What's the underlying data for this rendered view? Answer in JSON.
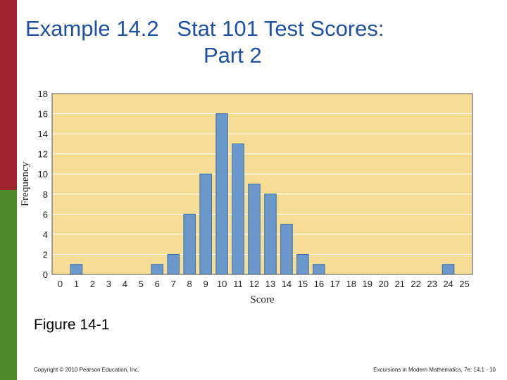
{
  "slide": {
    "title_line1": "Example 14.2   Stat 101 Test Scores:",
    "title_line2": "Part 2",
    "caption": "Figure 14-1",
    "footer_left": "Copyright © 2010 Pearson Education, Inc.",
    "footer_right": "Excursions in Modern Mathematics, 7e: 14.1 - 10"
  },
  "colors": {
    "title": "#1f4fa6",
    "plot_background": "#f5dd95",
    "bar_fill": "#6b98cb",
    "bar_edge": "#3c6ea6",
    "side_red": "#a0232f",
    "side_green": "#4f8a2a"
  },
  "chart_data": {
    "type": "bar",
    "title": "",
    "xlabel": "Score",
    "ylabel": "Frequency",
    "categories": [
      "0",
      "1",
      "2",
      "3",
      "4",
      "5",
      "6",
      "7",
      "8",
      "9",
      "10",
      "11",
      "12",
      "13",
      "14",
      "15",
      "16",
      "17",
      "18",
      "19",
      "20",
      "21",
      "22",
      "23",
      "24",
      "25"
    ],
    "values": [
      0,
      1,
      0,
      0,
      0,
      0,
      1,
      2,
      6,
      10,
      16,
      13,
      9,
      8,
      5,
      2,
      1,
      0,
      0,
      0,
      0,
      0,
      0,
      0,
      1,
      0
    ],
    "ylim": [
      0,
      18
    ],
    "yticks": [
      0,
      2,
      4,
      6,
      8,
      10,
      12,
      14,
      16,
      18
    ],
    "grid": true
  }
}
